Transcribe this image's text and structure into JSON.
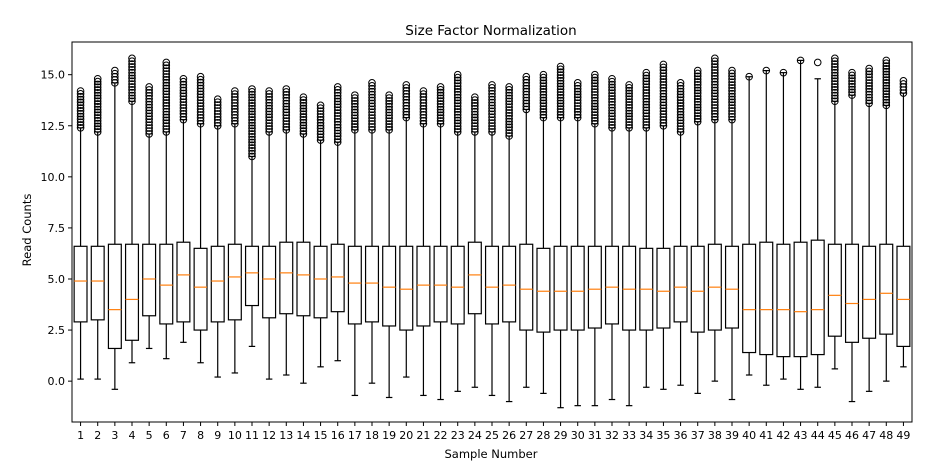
{
  "chart_data": {
    "type": "boxplot",
    "title": "Size Factor Normalization",
    "xlabel": "Sample Number",
    "ylabel": "Read Counts",
    "ylim": [
      -2.0,
      16.6
    ],
    "yticks": [
      0.0,
      2.5,
      5.0,
      7.5,
      10.0,
      12.5,
      15.0
    ],
    "ytick_labels": [
      "0.0",
      "2.5",
      "5.0",
      "7.5",
      "10.0",
      "12.5",
      "15.0"
    ],
    "categories": [
      "1",
      "2",
      "3",
      "4",
      "5",
      "6",
      "7",
      "8",
      "9",
      "10",
      "11",
      "12",
      "13",
      "14",
      "15",
      "16",
      "17",
      "18",
      "19",
      "20",
      "21",
      "22",
      "23",
      "24",
      "25",
      "26",
      "27",
      "28",
      "29",
      "30",
      "31",
      "32",
      "33",
      "34",
      "35",
      "36",
      "37",
      "38",
      "39",
      "40",
      "41",
      "42",
      "43",
      "44",
      "45",
      "46",
      "47",
      "48",
      "49"
    ],
    "colors": {
      "box": "#000000",
      "median": "#ff7f0e",
      "flier": "#000000"
    },
    "boxes": [
      {
        "wlo": 0.1,
        "q1": 2.9,
        "med": 4.9,
        "q3": 6.6,
        "whi": 12.4,
        "fmin": 12.4,
        "fmax": 14.2
      },
      {
        "wlo": 0.1,
        "q1": 3.0,
        "med": 4.9,
        "q3": 6.6,
        "whi": 12.2,
        "fmin": 12.2,
        "fmax": 14.8
      },
      {
        "wlo": -0.4,
        "q1": 1.6,
        "med": 3.5,
        "q3": 6.7,
        "whi": 14.6,
        "fmin": 14.6,
        "fmax": 15.2
      },
      {
        "wlo": 0.9,
        "q1": 2.0,
        "med": 4.0,
        "q3": 6.7,
        "whi": 13.7,
        "fmin": 13.7,
        "fmax": 15.8
      },
      {
        "wlo": 1.6,
        "q1": 3.2,
        "med": 5.0,
        "q3": 6.7,
        "whi": 12.1,
        "fmin": 12.1,
        "fmax": 14.4
      },
      {
        "wlo": 1.1,
        "q1": 2.8,
        "med": 4.7,
        "q3": 6.7,
        "whi": 12.2,
        "fmin": 12.2,
        "fmax": 15.6
      },
      {
        "wlo": 1.9,
        "q1": 2.9,
        "med": 5.2,
        "q3": 6.8,
        "whi": 12.8,
        "fmin": 12.8,
        "fmax": 14.8
      },
      {
        "wlo": 0.9,
        "q1": 2.5,
        "med": 4.6,
        "q3": 6.5,
        "whi": 12.6,
        "fmin": 12.6,
        "fmax": 14.9
      },
      {
        "wlo": 0.2,
        "q1": 2.9,
        "med": 4.9,
        "q3": 6.6,
        "whi": 12.5,
        "fmin": 12.5,
        "fmax": 13.8
      },
      {
        "wlo": 0.4,
        "q1": 3.0,
        "med": 5.1,
        "q3": 6.7,
        "whi": 12.6,
        "fmin": 12.6,
        "fmax": 14.2
      },
      {
        "wlo": 1.7,
        "q1": 3.7,
        "med": 5.3,
        "q3": 6.6,
        "whi": 11.0,
        "fmin": 11.0,
        "fmax": 14.3
      },
      {
        "wlo": 0.1,
        "q1": 3.1,
        "med": 5.0,
        "q3": 6.6,
        "whi": 12.2,
        "fmin": 12.2,
        "fmax": 14.2
      },
      {
        "wlo": 0.3,
        "q1": 3.3,
        "med": 5.3,
        "q3": 6.8,
        "whi": 12.3,
        "fmin": 12.3,
        "fmax": 14.3
      },
      {
        "wlo": -0.1,
        "q1": 3.2,
        "med": 5.2,
        "q3": 6.8,
        "whi": 12.1,
        "fmin": 12.1,
        "fmax": 13.9
      },
      {
        "wlo": 0.7,
        "q1": 3.1,
        "med": 5.0,
        "q3": 6.6,
        "whi": 11.8,
        "fmin": 11.8,
        "fmax": 13.5
      },
      {
        "wlo": 1.0,
        "q1": 3.4,
        "med": 5.1,
        "q3": 6.7,
        "whi": 11.7,
        "fmin": 11.7,
        "fmax": 14.4
      },
      {
        "wlo": -0.7,
        "q1": 2.8,
        "med": 4.8,
        "q3": 6.6,
        "whi": 12.3,
        "fmin": 12.3,
        "fmax": 14.0
      },
      {
        "wlo": -0.1,
        "q1": 2.9,
        "med": 4.8,
        "q3": 6.6,
        "whi": 12.3,
        "fmin": 12.3,
        "fmax": 14.6
      },
      {
        "wlo": -0.8,
        "q1": 2.7,
        "med": 4.6,
        "q3": 6.6,
        "whi": 12.3,
        "fmin": 12.3,
        "fmax": 14.0
      },
      {
        "wlo": 0.2,
        "q1": 2.5,
        "med": 4.5,
        "q3": 6.6,
        "whi": 12.9,
        "fmin": 12.9,
        "fmax": 14.5
      },
      {
        "wlo": -0.7,
        "q1": 2.7,
        "med": 4.7,
        "q3": 6.6,
        "whi": 12.6,
        "fmin": 12.6,
        "fmax": 14.2
      },
      {
        "wlo": -0.9,
        "q1": 2.9,
        "med": 4.7,
        "q3": 6.6,
        "whi": 12.6,
        "fmin": 12.6,
        "fmax": 14.4
      },
      {
        "wlo": -0.5,
        "q1": 2.8,
        "med": 4.6,
        "q3": 6.6,
        "whi": 12.2,
        "fmin": 12.2,
        "fmax": 15.0
      },
      {
        "wlo": -0.3,
        "q1": 3.3,
        "med": 5.2,
        "q3": 6.8,
        "whi": 12.2,
        "fmin": 12.2,
        "fmax": 13.9
      },
      {
        "wlo": -0.7,
        "q1": 2.8,
        "med": 4.6,
        "q3": 6.6,
        "whi": 12.2,
        "fmin": 12.2,
        "fmax": 14.5
      },
      {
        "wlo": -1.0,
        "q1": 2.9,
        "med": 4.7,
        "q3": 6.6,
        "whi": 12.0,
        "fmin": 12.0,
        "fmax": 14.4
      },
      {
        "wlo": -0.3,
        "q1": 2.5,
        "med": 4.5,
        "q3": 6.7,
        "whi": 13.3,
        "fmin": 13.3,
        "fmax": 14.9
      },
      {
        "wlo": -0.6,
        "q1": 2.4,
        "med": 4.4,
        "q3": 6.5,
        "whi": 12.9,
        "fmin": 12.9,
        "fmax": 15.0
      },
      {
        "wlo": -1.3,
        "q1": 2.5,
        "med": 4.4,
        "q3": 6.6,
        "whi": 12.9,
        "fmin": 12.9,
        "fmax": 15.4
      },
      {
        "wlo": -1.2,
        "q1": 2.5,
        "med": 4.4,
        "q3": 6.6,
        "whi": 12.9,
        "fmin": 12.9,
        "fmax": 14.6
      },
      {
        "wlo": -1.2,
        "q1": 2.6,
        "med": 4.5,
        "q3": 6.6,
        "whi": 12.6,
        "fmin": 12.6,
        "fmax": 15.0
      },
      {
        "wlo": -0.9,
        "q1": 2.8,
        "med": 4.6,
        "q3": 6.6,
        "whi": 12.4,
        "fmin": 12.4,
        "fmax": 14.8
      },
      {
        "wlo": -1.2,
        "q1": 2.5,
        "med": 4.5,
        "q3": 6.6,
        "whi": 12.4,
        "fmin": 12.4,
        "fmax": 14.5
      },
      {
        "wlo": -0.3,
        "q1": 2.5,
        "med": 4.5,
        "q3": 6.5,
        "whi": 12.4,
        "fmin": 12.4,
        "fmax": 15.1
      },
      {
        "wlo": -0.4,
        "q1": 2.6,
        "med": 4.4,
        "q3": 6.5,
        "whi": 12.5,
        "fmin": 12.5,
        "fmax": 15.5
      },
      {
        "wlo": -0.2,
        "q1": 2.9,
        "med": 4.6,
        "q3": 6.6,
        "whi": 12.2,
        "fmin": 12.2,
        "fmax": 14.6
      },
      {
        "wlo": -0.6,
        "q1": 2.4,
        "med": 4.4,
        "q3": 6.6,
        "whi": 12.7,
        "fmin": 12.7,
        "fmax": 15.2
      },
      {
        "wlo": 0.0,
        "q1": 2.5,
        "med": 4.6,
        "q3": 6.7,
        "whi": 12.8,
        "fmin": 12.8,
        "fmax": 15.8
      },
      {
        "wlo": -0.9,
        "q1": 2.6,
        "med": 4.5,
        "q3": 6.6,
        "whi": 12.8,
        "fmin": 12.8,
        "fmax": 15.2
      },
      {
        "wlo": 0.3,
        "q1": 1.4,
        "med": 3.5,
        "q3": 6.7,
        "whi": 14.9,
        "fmin": 14.9,
        "fmax": 14.9
      },
      {
        "wlo": -0.2,
        "q1": 1.3,
        "med": 3.5,
        "q3": 6.8,
        "whi": 15.2,
        "fmin": 15.2,
        "fmax": 15.2
      },
      {
        "wlo": 0.1,
        "q1": 1.2,
        "med": 3.5,
        "q3": 6.7,
        "whi": 15.1,
        "fmin": 15.1,
        "fmax": 15.1
      },
      {
        "wlo": -0.4,
        "q1": 1.2,
        "med": 3.4,
        "q3": 6.8,
        "whi": 15.7,
        "fmin": 15.7,
        "fmax": 15.7
      },
      {
        "wlo": -0.3,
        "q1": 1.3,
        "med": 3.5,
        "q3": 6.9,
        "whi": 14.8,
        "fmin": 15.6,
        "fmax": 15.6
      },
      {
        "wlo": 0.6,
        "q1": 2.2,
        "med": 4.2,
        "q3": 6.7,
        "whi": 13.7,
        "fmin": 13.7,
        "fmax": 15.8
      },
      {
        "wlo": -1.0,
        "q1": 1.9,
        "med": 3.8,
        "q3": 6.7,
        "whi": 14.0,
        "fmin": 14.0,
        "fmax": 15.1
      },
      {
        "wlo": -0.5,
        "q1": 2.1,
        "med": 4.0,
        "q3": 6.6,
        "whi": 13.6,
        "fmin": 13.6,
        "fmax": 15.3
      },
      {
        "wlo": 0.0,
        "q1": 2.3,
        "med": 4.3,
        "q3": 6.7,
        "whi": 13.5,
        "fmin": 13.5,
        "fmax": 15.7
      },
      {
        "wlo": 0.7,
        "q1": 1.7,
        "med": 4.0,
        "q3": 6.6,
        "whi": 14.1,
        "fmin": 14.1,
        "fmax": 14.7
      }
    ]
  }
}
